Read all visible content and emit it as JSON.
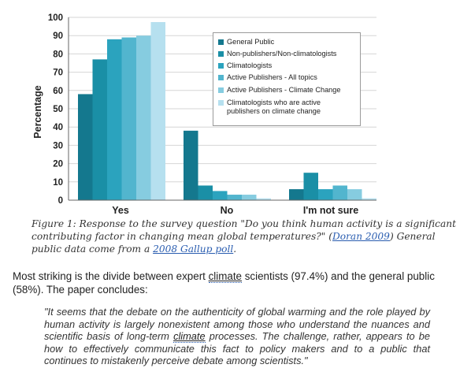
{
  "chart_data": {
    "type": "bar",
    "ylabel": "Percentage",
    "ylim": [
      0,
      100
    ],
    "yticks": [
      0,
      10,
      20,
      30,
      40,
      50,
      60,
      70,
      80,
      90,
      100
    ],
    "grid": true,
    "legend_position": "top-right",
    "categories": [
      "Yes",
      "No",
      "I'm not sure"
    ],
    "series": [
      {
        "name": "General Public",
        "color": "#14788e",
        "values": [
          58,
          38,
          6
        ]
      },
      {
        "name": "Non-publishers/Non-climatologists",
        "color": "#1a8fa6",
        "values": [
          77,
          8,
          15
        ]
      },
      {
        "name": "Climatologists",
        "color": "#2ba3be",
        "values": [
          88,
          5,
          6
        ]
      },
      {
        "name": "Active Publishers - All topics",
        "color": "#52b5ce",
        "values": [
          89,
          3,
          8
        ]
      },
      {
        "name": "Active Publishers - Climate Change",
        "color": "#86cce0",
        "values": [
          90,
          3,
          6
        ]
      },
      {
        "name": "Climatologists who are active publishers on climate change",
        "color": "#b6e0ef",
        "values": [
          97.4,
          1,
          1
        ]
      }
    ]
  },
  "caption": {
    "prefix": "Figure 1: Response to the survey question \"Do you think human activity is a significant contributing factor in changing mean global temperatures?\" (",
    "link1": "Doran 2009",
    "middle": ") General public data come from a ",
    "link2": "2008 Gallup poll",
    "suffix": "."
  },
  "body": {
    "before": "Most striking is the divide between expert ",
    "link": "climate",
    "after": " scientists (97.4%) and the general public (58%). The paper concludes:"
  },
  "quote": {
    "before": "\"It seems that the debate on the authenticity of global warming and the role played by human activity is largely nonexistent among those who understand the nuances and scientific basis of long-term ",
    "link": "climate",
    "after": " processes. The challenge, rather, appears to be how to effectively communicate this fact to policy makers and to a public that continues to mistakenly perceive debate among scientists.\""
  }
}
